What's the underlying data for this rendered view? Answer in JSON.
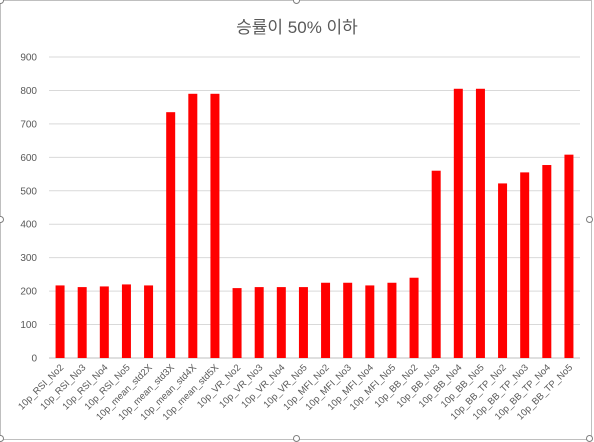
{
  "chart_data": {
    "type": "bar",
    "title": "승률이 50% 이하",
    "categories": [
      "10p_RSI_No2",
      "10p_RSI_No3",
      "10p_RSI_No4",
      "10p_RSI_No5",
      "10p_mean_std2X",
      "10p_mean_std3X",
      "10p_mean_std4X",
      "10p_mean_std5X",
      "10p_VR_No2",
      "10p_VR_No3",
      "10p_VR_No4",
      "10p_VR_No5",
      "10p_MFI_No2",
      "10p_MFI_No3",
      "10p_MFI_No4",
      "10p_MFI_No5",
      "10p_BB_No2",
      "10p_BB_No3",
      "10p_BB_No4",
      "10p_BB_No5",
      "10p_BB_TP_No2",
      "10p_BB_TP_No3",
      "10p_BB_TP_No4",
      "10p_BB_TP_No5"
    ],
    "values": [
      217,
      212,
      214,
      220,
      217,
      735,
      790,
      790,
      209,
      212,
      212,
      212,
      225,
      225,
      217,
      225,
      240,
      560,
      805,
      805,
      522,
      555,
      577,
      608
    ],
    "ylim": [
      0,
      900
    ],
    "yticks": [
      0,
      100,
      200,
      300,
      400,
      500,
      600,
      700,
      800,
      900
    ],
    "grid": true,
    "legend": "none",
    "bar_color": "#ff0000"
  }
}
